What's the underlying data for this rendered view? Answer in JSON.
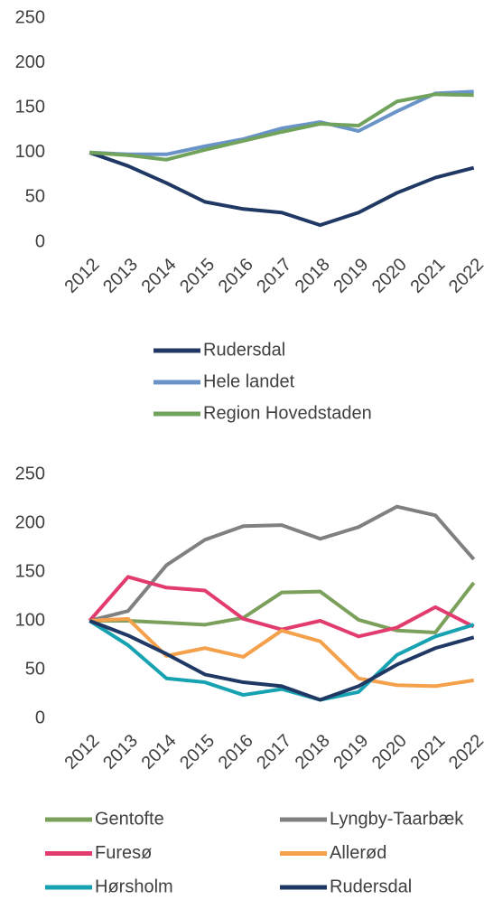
{
  "chart_data": [
    {
      "type": "line",
      "categories": [
        "2012",
        "2013",
        "2014",
        "2015",
        "2016",
        "2017",
        "2018",
        "2019",
        "2020",
        "2021",
        "2022"
      ],
      "series": [
        {
          "name": "Rudersdal",
          "color": "#203864",
          "values": [
            100,
            85,
            66,
            45,
            37,
            33,
            19,
            33,
            55,
            72,
            83
          ]
        },
        {
          "name": "Hele landet",
          "color": "#6a93c8",
          "values": [
            100,
            98,
            98,
            107,
            115,
            127,
            134,
            124,
            146,
            166,
            168
          ]
        },
        {
          "name": "Region Hovedstaden",
          "color": "#72a35c",
          "values": [
            100,
            97,
            92,
            103,
            113,
            123,
            132,
            130,
            157,
            165,
            164
          ]
        }
      ],
      "ylim": [
        0,
        250
      ],
      "yticks": [
        0,
        50,
        100,
        150,
        200,
        250
      ],
      "legend": "bottom"
    },
    {
      "type": "line",
      "categories": [
        "2012",
        "2013",
        "2014",
        "2015",
        "2016",
        "2017",
        "2018",
        "2019",
        "2020",
        "2021",
        "2022"
      ],
      "series": [
        {
          "name": "Gentofte",
          "color": "#7ba05b",
          "values": [
            100,
            100,
            98,
            96,
            103,
            129,
            130,
            101,
            90,
            88,
            139
          ]
        },
        {
          "name": "Lyngby-Taarbæk",
          "color": "#808080",
          "values": [
            100,
            110,
            157,
            183,
            197,
            198,
            184,
            196,
            217,
            208,
            163
          ]
        },
        {
          "name": "Furesø",
          "color": "#e23c6e",
          "values": [
            100,
            145,
            134,
            131,
            102,
            91,
            100,
            84,
            93,
            114,
            94
          ]
        },
        {
          "name": "Allerød",
          "color": "#f5a04a",
          "values": [
            100,
            102,
            64,
            72,
            63,
            90,
            79,
            41,
            34,
            33,
            39
          ]
        },
        {
          "name": "Hørsholm",
          "color": "#17a2b1",
          "values": [
            100,
            75,
            41,
            37,
            24,
            30,
            19,
            27,
            65,
            84,
            96
          ]
        },
        {
          "name": "Rudersdal",
          "color": "#203864",
          "values": [
            100,
            85,
            66,
            45,
            37,
            33,
            19,
            33,
            55,
            72,
            83
          ]
        }
      ],
      "ylim": [
        0,
        250
      ],
      "yticks": [
        0,
        50,
        100,
        150,
        200,
        250
      ],
      "legend": "bottom"
    }
  ]
}
